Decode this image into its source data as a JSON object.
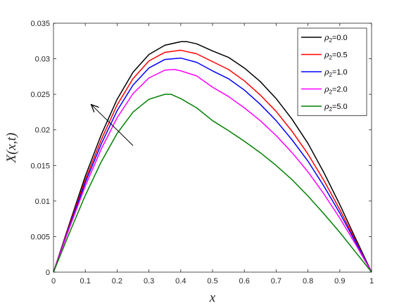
{
  "chart_data": {
    "type": "line",
    "xlabel": "x",
    "ylabel": "X(x,t)",
    "xlim": [
      0,
      1
    ],
    "ylim": [
      0,
      0.035
    ],
    "x_ticks": [
      "0",
      "0.1",
      "0.2",
      "0.3",
      "0.4",
      "0.5",
      "0.6",
      "0.7",
      "0.8",
      "0.9",
      "1"
    ],
    "y_ticks": [
      "0",
      "0.005",
      "0.01",
      "0.015",
      "0.02",
      "0.025",
      "0.03",
      "0.035"
    ],
    "grid": false,
    "legend_position": "top-right",
    "legend_symbol": "ρ",
    "legend_subscript": "2",
    "series": [
      {
        "name": "ρ2=0.0",
        "value_text": "=0.0",
        "color": "#000000",
        "points": [
          [
            0,
            0
          ],
          [
            0.05,
            0.0068
          ],
          [
            0.1,
            0.0135
          ],
          [
            0.15,
            0.0193
          ],
          [
            0.2,
            0.0243
          ],
          [
            0.25,
            0.0281
          ],
          [
            0.3,
            0.0306
          ],
          [
            0.35,
            0.0319
          ],
          [
            0.4,
            0.0324
          ],
          [
            0.42,
            0.0324
          ],
          [
            0.45,
            0.0321
          ],
          [
            0.5,
            0.0311
          ],
          [
            0.55,
            0.0302
          ],
          [
            0.6,
            0.0287
          ],
          [
            0.65,
            0.0268
          ],
          [
            0.7,
            0.0244
          ],
          [
            0.75,
            0.0215
          ],
          [
            0.8,
            0.0181
          ],
          [
            0.85,
            0.014
          ],
          [
            0.9,
            0.0095
          ],
          [
            0.95,
            0.0047
          ],
          [
            1,
            0
          ]
        ]
      },
      {
        "name": "ρ2=0.5",
        "value_text": "=0.5",
        "color": "#ff0000",
        "points": [
          [
            0,
            0
          ],
          [
            0.05,
            0.0066
          ],
          [
            0.1,
            0.013
          ],
          [
            0.15,
            0.0186
          ],
          [
            0.2,
            0.0235
          ],
          [
            0.25,
            0.0272
          ],
          [
            0.3,
            0.0297
          ],
          [
            0.35,
            0.0309
          ],
          [
            0.4,
            0.0312
          ],
          [
            0.45,
            0.0307
          ],
          [
            0.5,
            0.0296
          ],
          [
            0.55,
            0.0285
          ],
          [
            0.6,
            0.0269
          ],
          [
            0.65,
            0.0249
          ],
          [
            0.7,
            0.0226
          ],
          [
            0.75,
            0.0198
          ],
          [
            0.8,
            0.0166
          ],
          [
            0.85,
            0.0129
          ],
          [
            0.9,
            0.0088
          ],
          [
            0.95,
            0.0044
          ],
          [
            1,
            0
          ]
        ]
      },
      {
        "name": "ρ2=1.0",
        "value_text": "=1.0",
        "color": "#0000ff",
        "points": [
          [
            0,
            0
          ],
          [
            0.05,
            0.0064
          ],
          [
            0.1,
            0.0126
          ],
          [
            0.15,
            0.018
          ],
          [
            0.2,
            0.0227
          ],
          [
            0.25,
            0.0263
          ],
          [
            0.3,
            0.0287
          ],
          [
            0.35,
            0.0299
          ],
          [
            0.4,
            0.0301
          ],
          [
            0.45,
            0.0295
          ],
          [
            0.5,
            0.0283
          ],
          [
            0.55,
            0.0272
          ],
          [
            0.6,
            0.0256
          ],
          [
            0.65,
            0.0236
          ],
          [
            0.7,
            0.0213
          ],
          [
            0.75,
            0.0186
          ],
          [
            0.8,
            0.0156
          ],
          [
            0.85,
            0.0121
          ],
          [
            0.9,
            0.0083
          ],
          [
            0.95,
            0.0042
          ],
          [
            1,
            0
          ]
        ]
      },
      {
        "name": "ρ2=2.0",
        "value_text": "=2.0",
        "color": "#ff00ff",
        "points": [
          [
            0,
            0
          ],
          [
            0.05,
            0.0062
          ],
          [
            0.1,
            0.0121
          ],
          [
            0.15,
            0.0173
          ],
          [
            0.2,
            0.0217
          ],
          [
            0.25,
            0.0251
          ],
          [
            0.3,
            0.0273
          ],
          [
            0.35,
            0.0284
          ],
          [
            0.38,
            0.0285
          ],
          [
            0.4,
            0.0283
          ],
          [
            0.45,
            0.0276
          ],
          [
            0.5,
            0.026
          ],
          [
            0.55,
            0.0247
          ],
          [
            0.6,
            0.0231
          ],
          [
            0.65,
            0.0213
          ],
          [
            0.7,
            0.0192
          ],
          [
            0.75,
            0.0168
          ],
          [
            0.8,
            0.0141
          ],
          [
            0.85,
            0.011
          ],
          [
            0.9,
            0.0076
          ],
          [
            0.95,
            0.0039
          ],
          [
            1,
            0
          ]
        ]
      },
      {
        "name": "ρ2=5.0",
        "value_text": "=5.0",
        "color": "#008000",
        "points": [
          [
            0,
            0
          ],
          [
            0.05,
            0.0055
          ],
          [
            0.1,
            0.0108
          ],
          [
            0.15,
            0.0155
          ],
          [
            0.2,
            0.0195
          ],
          [
            0.25,
            0.0225
          ],
          [
            0.3,
            0.0243
          ],
          [
            0.35,
            0.025
          ],
          [
            0.37,
            0.025
          ],
          [
            0.4,
            0.0244
          ],
          [
            0.45,
            0.0231
          ],
          [
            0.5,
            0.0213
          ],
          [
            0.55,
            0.0199
          ],
          [
            0.6,
            0.0184
          ],
          [
            0.65,
            0.0168
          ],
          [
            0.7,
            0.015
          ],
          [
            0.75,
            0.013
          ],
          [
            0.8,
            0.0107
          ],
          [
            0.85,
            0.0082
          ],
          [
            0.9,
            0.0056
          ],
          [
            0.95,
            0.0028
          ],
          [
            1,
            0
          ]
        ]
      }
    ],
    "annotation": {
      "type": "arrow",
      "from": [
        0.25,
        0.0178
      ],
      "to": [
        0.12,
        0.0235
      ],
      "color": "#000000"
    }
  }
}
